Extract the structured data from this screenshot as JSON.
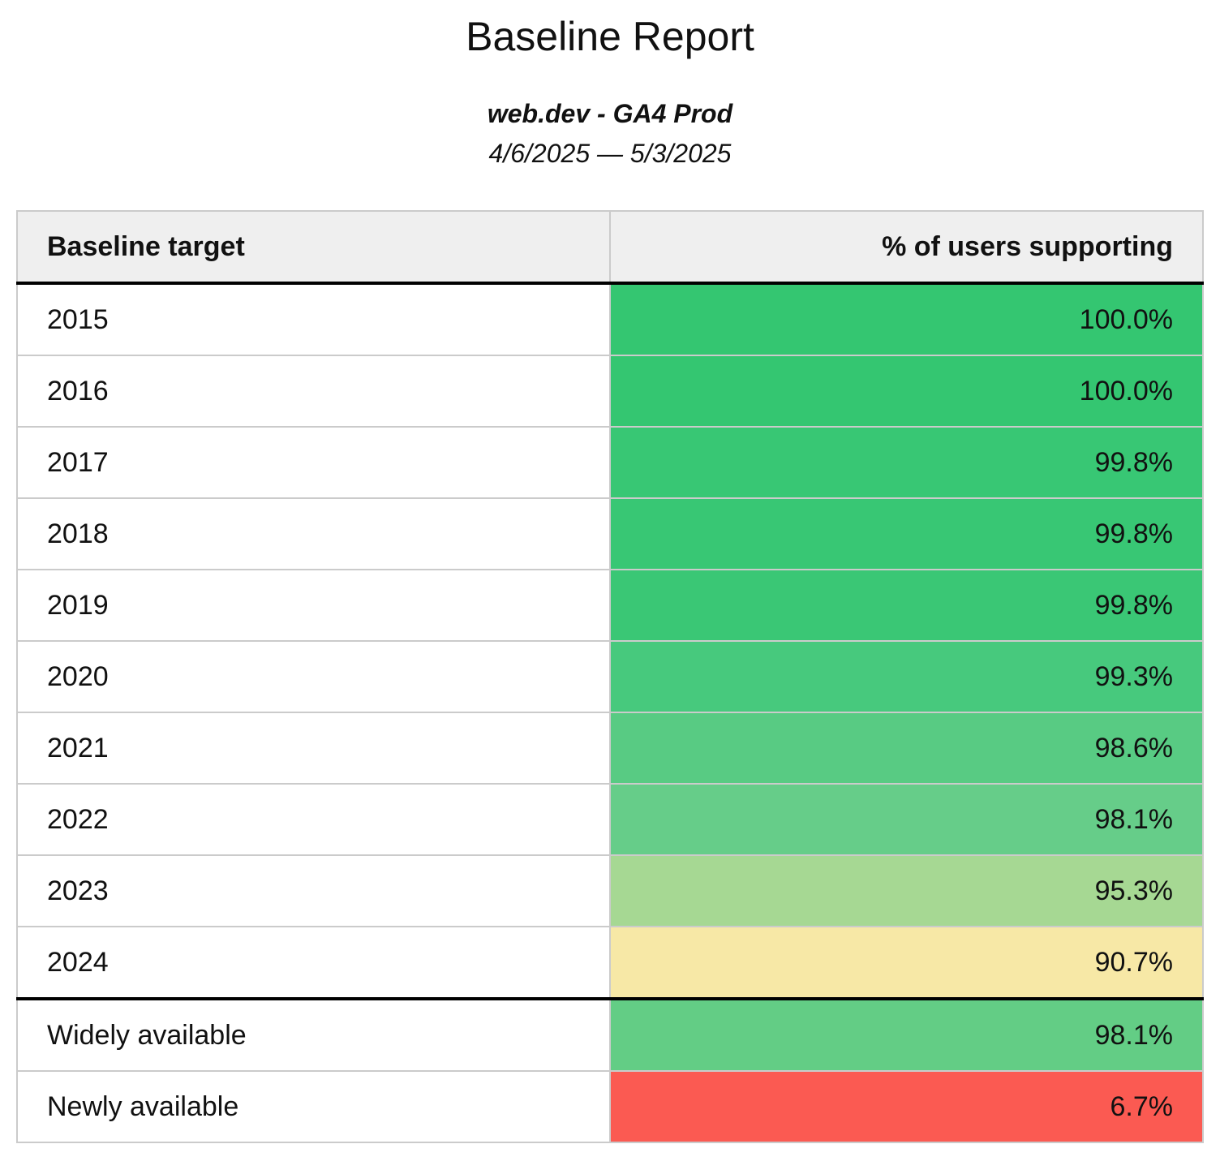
{
  "page": {
    "title": "Baseline Report",
    "subtitle": "web.dev - GA4 Prod",
    "date_range": "4/6/2025 — 5/3/2025"
  },
  "table": {
    "columns": {
      "target": "Baseline target",
      "support": "% of users supporting"
    },
    "year_rows": [
      {
        "label": "2015",
        "value": "100.0%",
        "color": "#34c671"
      },
      {
        "label": "2016",
        "value": "100.0%",
        "color": "#34c671"
      },
      {
        "label": "2017",
        "value": "99.8%",
        "color": "#38c774"
      },
      {
        "label": "2018",
        "value": "99.8%",
        "color": "#38c774"
      },
      {
        "label": "2019",
        "value": "99.8%",
        "color": "#3ac775"
      },
      {
        "label": "2020",
        "value": "99.3%",
        "color": "#47c97d"
      },
      {
        "label": "2021",
        "value": "98.6%",
        "color": "#58cb83"
      },
      {
        "label": "2022",
        "value": "98.1%",
        "color": "#66cd89"
      },
      {
        "label": "2023",
        "value": "95.3%",
        "color": "#a6d893"
      },
      {
        "label": "2024",
        "value": "90.7%",
        "color": "#f7e8a6"
      }
    ],
    "summary_rows": [
      {
        "label": "Widely available",
        "value": "98.1%",
        "color": "#63cd85"
      },
      {
        "label": "Newly available",
        "value": "6.7%",
        "color": "#fb5a52"
      }
    ]
  },
  "colors": {
    "header_bg": "#efefef",
    "grid_line": "#cbcbcb",
    "section_divider": "#000000",
    "text": "#111111"
  },
  "chart_data": {
    "type": "table",
    "title": "Baseline Report",
    "subtitle": "web.dev - GA4 Prod",
    "date_range": "4/6/2025 — 5/3/2025",
    "columns": [
      "Baseline target",
      "% of users supporting"
    ],
    "categories": [
      "2015",
      "2016",
      "2017",
      "2018",
      "2019",
      "2020",
      "2021",
      "2022",
      "2023",
      "2024",
      "Widely available",
      "Newly available"
    ],
    "values": [
      100.0,
      100.0,
      99.8,
      99.8,
      99.8,
      99.3,
      98.6,
      98.1,
      95.3,
      90.7,
      98.1,
      6.7
    ],
    "value_unit": "%",
    "layout_hints": "percentage column cells color-coded on red→yellow→green scale by value; thick black rule under header and between 2024 and summary rows"
  }
}
